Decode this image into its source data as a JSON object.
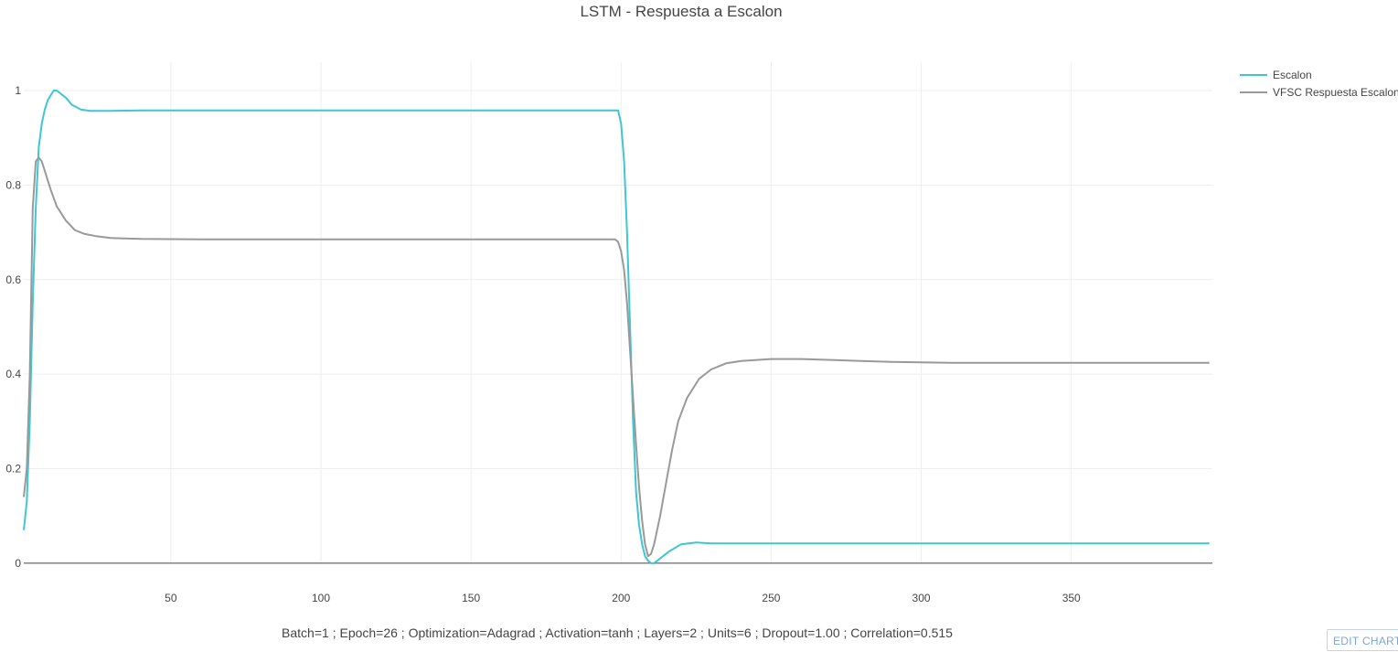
{
  "chart_data": {
    "type": "line",
    "title": "LSTM - Respuesta a Escalon",
    "caption": "Batch=1 ; Epoch=26 ; Optimization=Adagrad ; Activation=tanh ; Layers=2 ; Units=6 ; Dropout=1.00 ; Correlation=0.515",
    "xlim": [
      1,
      397
    ],
    "ylim": [
      -0.035,
      1.06
    ],
    "x_ticks": [
      50,
      100,
      150,
      200,
      250,
      300,
      350
    ],
    "y_ticks": [
      0,
      0.2,
      0.4,
      0.6,
      0.8,
      1
    ],
    "y_tick_labels": [
      "0",
      "0.2",
      "0.4",
      "0.6",
      "0.8",
      "1"
    ],
    "grid": true,
    "legend_position": "top-right",
    "series": [
      {
        "name": "Escalon",
        "color": "#3ec6d3",
        "points": [
          [
            1,
            0.07
          ],
          [
            2,
            0.13
          ],
          [
            3,
            0.3
          ],
          [
            4,
            0.55
          ],
          [
            5,
            0.75
          ],
          [
            6,
            0.88
          ],
          [
            7,
            0.93
          ],
          [
            8,
            0.96
          ],
          [
            9,
            0.98
          ],
          [
            10,
            0.99
          ],
          [
            11,
            1.0
          ],
          [
            12,
            1.0
          ],
          [
            13,
            0.995
          ],
          [
            15,
            0.985
          ],
          [
            17,
            0.97
          ],
          [
            20,
            0.96
          ],
          [
            23,
            0.957
          ],
          [
            30,
            0.957
          ],
          [
            40,
            0.958
          ],
          [
            100,
            0.958
          ],
          [
            150,
            0.958
          ],
          [
            199,
            0.958
          ],
          [
            200,
            0.93
          ],
          [
            201,
            0.85
          ],
          [
            202,
            0.7
          ],
          [
            203,
            0.5
          ],
          [
            204,
            0.3
          ],
          [
            205,
            0.15
          ],
          [
            206,
            0.08
          ],
          [
            207,
            0.04
          ],
          [
            208,
            0.015
          ],
          [
            209,
            0.005
          ],
          [
            210,
            0.0
          ],
          [
            211,
            0.0
          ],
          [
            213,
            0.01
          ],
          [
            216,
            0.025
          ],
          [
            220,
            0.04
          ],
          [
            225,
            0.044
          ],
          [
            230,
            0.042
          ],
          [
            240,
            0.042
          ],
          [
            300,
            0.042
          ],
          [
            350,
            0.042
          ],
          [
            396,
            0.042
          ]
        ]
      },
      {
        "name": "VFSC Respuesta Escalon",
        "color": "#999999",
        "points": [
          [
            1,
            0.14
          ],
          [
            2,
            0.2
          ],
          [
            3,
            0.4
          ],
          [
            4,
            0.75
          ],
          [
            5,
            0.85
          ],
          [
            6,
            0.858
          ],
          [
            7,
            0.85
          ],
          [
            8,
            0.83
          ],
          [
            10,
            0.79
          ],
          [
            12,
            0.755
          ],
          [
            15,
            0.725
          ],
          [
            18,
            0.705
          ],
          [
            21,
            0.697
          ],
          [
            25,
            0.692
          ],
          [
            30,
            0.688
          ],
          [
            40,
            0.686
          ],
          [
            60,
            0.685
          ],
          [
            100,
            0.685
          ],
          [
            150,
            0.685
          ],
          [
            198,
            0.685
          ],
          [
            199,
            0.68
          ],
          [
            200,
            0.66
          ],
          [
            201,
            0.62
          ],
          [
            202,
            0.55
          ],
          [
            203,
            0.45
          ],
          [
            204,
            0.35
          ],
          [
            205,
            0.25
          ],
          [
            206,
            0.16
          ],
          [
            207,
            0.09
          ],
          [
            208,
            0.04
          ],
          [
            209,
            0.015
          ],
          [
            210,
            0.02
          ],
          [
            211,
            0.04
          ],
          [
            213,
            0.1
          ],
          [
            215,
            0.17
          ],
          [
            217,
            0.24
          ],
          [
            219,
            0.3
          ],
          [
            222,
            0.35
          ],
          [
            226,
            0.39
          ],
          [
            230,
            0.41
          ],
          [
            235,
            0.423
          ],
          [
            240,
            0.428
          ],
          [
            250,
            0.432
          ],
          [
            260,
            0.432
          ],
          [
            270,
            0.43
          ],
          [
            280,
            0.428
          ],
          [
            290,
            0.426
          ],
          [
            300,
            0.425
          ],
          [
            310,
            0.424
          ],
          [
            350,
            0.424
          ],
          [
            396,
            0.424
          ]
        ]
      }
    ]
  },
  "toolbar": {
    "edit_label": "EDIT CHART"
  }
}
